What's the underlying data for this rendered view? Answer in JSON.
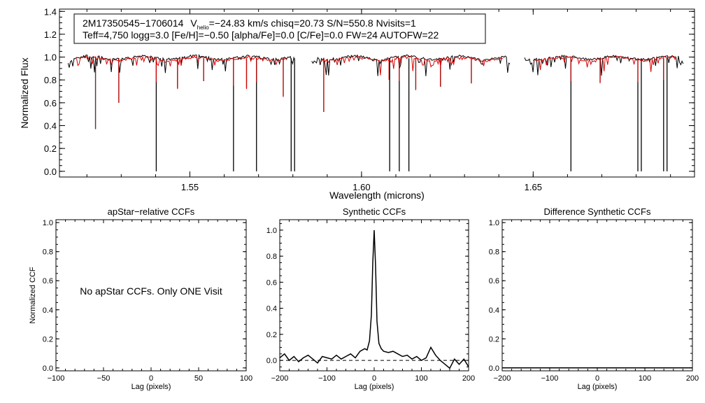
{
  "chart_data": [
    {
      "type": "line",
      "id": "spectrum",
      "title": "",
      "xlabel": "Wavelength (microns)",
      "ylabel": "Normalized Flux",
      "xlim": [
        1.512,
        1.697
      ],
      "ylim": [
        -0.05,
        1.42
      ],
      "xticks": [
        1.55,
        1.6,
        1.65
      ],
      "xtick_labels": [
        "1.55",
        "1.60",
        "1.65"
      ],
      "yticks": [
        0.0,
        0.2,
        0.4,
        0.6,
        0.8,
        1.0,
        1.2,
        1.4
      ],
      "ytick_labels": [
        "0.0",
        "0.2",
        "0.4",
        "0.6",
        "0.8",
        "1.0",
        "1.2",
        "1.4"
      ],
      "chips": [
        [
          1.5145,
          1.5805
        ],
        [
          1.5855,
          1.6435
        ],
        [
          1.6475,
          1.694
        ]
      ],
      "series": [
        {
          "name": "observed",
          "color": "#000000",
          "lines": [
            [
              1.5225,
              0.37
            ],
            [
              1.5293,
              0.6
            ],
            [
              1.5402,
              0.0
            ],
            [
              1.5464,
              0.73
            ],
            [
              1.554,
              0.79
            ],
            [
              1.5627,
              0.0
            ],
            [
              1.5665,
              0.73
            ],
            [
              1.5694,
              0.0
            ],
            [
              1.5772,
              0.66
            ],
            [
              1.5795,
              0.0
            ],
            [
              1.5805,
              0.0
            ],
            [
              1.589,
              0.52
            ],
            [
              1.6082,
              0.0
            ],
            [
              1.611,
              0.0
            ],
            [
              1.6138,
              0.0
            ],
            [
              1.6158,
              0.72
            ],
            [
              1.623,
              0.74
            ],
            [
              1.632,
              0.77
            ],
            [
              1.661,
              0.0
            ],
            [
              1.6695,
              0.78
            ],
            [
              1.6805,
              0.0
            ],
            [
              1.6815,
              0.0
            ],
            [
              1.688,
              0.0
            ],
            [
              1.689,
              0.0
            ]
          ]
        },
        {
          "name": "synthetic",
          "color": "#dd0000",
          "lines": [
            [
              1.5225,
              0.37
            ],
            [
              1.5293,
              0.6
            ],
            [
              1.5402,
              0.78
            ],
            [
              1.5464,
              0.72
            ],
            [
              1.554,
              0.79
            ],
            [
              1.5627,
              0.75
            ],
            [
              1.5665,
              0.72
            ],
            [
              1.5694,
              0.78
            ],
            [
              1.5772,
              0.65
            ],
            [
              1.589,
              0.52
            ],
            [
              1.608,
              0.8
            ],
            [
              1.611,
              0.79
            ],
            [
              1.6158,
              0.71
            ],
            [
              1.623,
              0.74
            ],
            [
              1.632,
              0.77
            ],
            [
              1.661,
              0.79
            ],
            [
              1.6695,
              0.77
            ],
            [
              1.6805,
              0.78
            ],
            [
              1.688,
              0.8
            ]
          ]
        }
      ],
      "info_box": {
        "line1": {
          "star": "2M17350545−1706014",
          "v": "V",
          "v_sub": "helio",
          "rest": "=−24.83 km/s  chisq=20.73  S/N=550.8  Nvisits=1"
        },
        "line2": "Teff=4,750 logg=3.0 [Fe/H]=−0.50 [alpha/Fe]=0.0 [C/Fe]=0.0 FW=24 AUTOFW=22"
      }
    },
    {
      "type": "line",
      "id": "apstar",
      "title": "apStar−relative CCFs",
      "xlabel": "Lag (pixels)",
      "ylabel": "Normalized CCF",
      "xlim": [
        -100,
        100
      ],
      "ylim": [
        -0.02,
        1.02
      ],
      "xticks": [
        -100,
        -50,
        0,
        50,
        100
      ],
      "xtick_labels": [
        "−100",
        "−50",
        "0",
        "50",
        "100"
      ],
      "yticks": [
        0.0,
        0.2,
        0.4,
        0.6,
        0.8,
        1.0
      ],
      "ytick_labels": [
        "0.0",
        "0.2",
        "0.4",
        "0.6",
        "0.8",
        "1.0"
      ],
      "annotation": "No apStar CCFs.  Only ONE Visit",
      "series": []
    },
    {
      "type": "line",
      "id": "synthetic",
      "title": "Synthetic CCFs",
      "xlabel": "Lag (pixels)",
      "ylabel": "",
      "xlim": [
        -200,
        200
      ],
      "ylim": [
        -0.08,
        1.08
      ],
      "xticks": [
        -200,
        -100,
        0,
        100,
        200
      ],
      "xtick_labels": [
        "−200",
        "−100",
        "0",
        "100",
        "200"
      ],
      "yticks": [
        0.0,
        0.2,
        0.4,
        0.6,
        0.8,
        1.0
      ],
      "ytick_labels": [
        "0.0",
        "0.2",
        "0.4",
        "0.6",
        "0.8",
        "1.0"
      ],
      "series": [
        {
          "name": "ccf",
          "x": [
            -200,
            -190,
            -180,
            -170,
            -160,
            -150,
            -140,
            -130,
            -120,
            -110,
            -100,
            -90,
            -80,
            -70,
            -60,
            -50,
            -40,
            -30,
            -20,
            -15,
            -10,
            -6,
            -3,
            0,
            3,
            6,
            10,
            15,
            20,
            30,
            40,
            50,
            60,
            70,
            80,
            90,
            100,
            110,
            120,
            130,
            140,
            150,
            160,
            170,
            180,
            190,
            200
          ],
          "y": [
            0.02,
            0.05,
            0.0,
            0.03,
            -0.01,
            0.02,
            0.04,
            0.01,
            -0.02,
            0.03,
            0.02,
            0.01,
            0.04,
            0.01,
            0.03,
            0.05,
            0.02,
            0.07,
            0.09,
            0.08,
            0.15,
            0.35,
            0.75,
            1.0,
            0.72,
            0.3,
            0.13,
            0.09,
            0.07,
            0.06,
            0.07,
            0.05,
            0.03,
            0.04,
            0.01,
            0.03,
            0.0,
            0.02,
            0.1,
            0.04,
            0.0,
            -0.03,
            -0.06,
            0.01,
            -0.03,
            0.01,
            -0.05
          ]
        },
        {
          "name": "zero",
          "dashed": true,
          "x": [
            -200,
            200
          ],
          "y": [
            0.0,
            0.0
          ]
        }
      ]
    },
    {
      "type": "line",
      "id": "difference",
      "title": "Difference Synthetic CCFs",
      "xlabel": "Lag (pixels)",
      "ylabel": "",
      "xlim": [
        -200,
        200
      ],
      "ylim": [
        -0.02,
        1.02
      ],
      "xticks": [
        -200,
        -100,
        0,
        100,
        200
      ],
      "xtick_labels": [
        "−200",
        "−100",
        "0",
        "100",
        "200"
      ],
      "yticks": [
        0.0,
        0.2,
        0.4,
        0.6,
        0.8,
        1.0
      ],
      "ytick_labels": [
        "0.0",
        "0.2",
        "0.4",
        "0.6",
        "0.8",
        "1.0"
      ],
      "series": [
        {
          "name": "difference",
          "x": [
            -200,
            200
          ],
          "y": [
            0.0,
            0.0
          ]
        }
      ]
    }
  ]
}
